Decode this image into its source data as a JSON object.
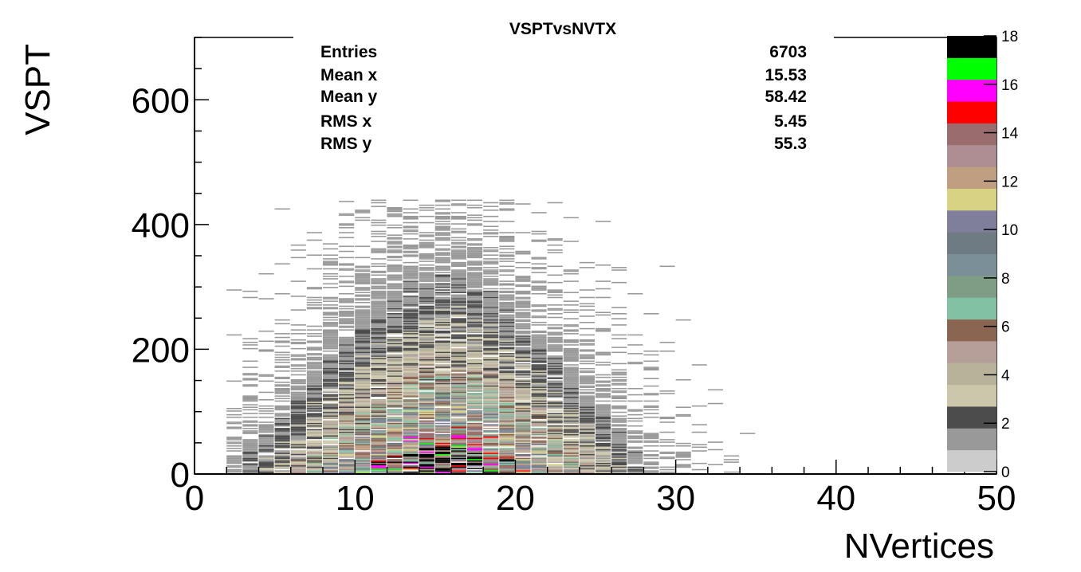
{
  "chart_data": {
    "type": "heatmap",
    "title": "VSPTvsNVTX",
    "xlabel": "NVertices",
    "ylabel": "VSPT",
    "xlim": [
      0,
      50
    ],
    "ylim": [
      0,
      700
    ],
    "zlim": [
      0,
      18
    ],
    "x_ticks": [
      "0",
      "10",
      "20",
      "30",
      "40",
      "50"
    ],
    "y_ticks": [
      "0",
      "200",
      "400",
      "600"
    ],
    "z_ticks": [
      "0",
      "2",
      "4",
      "6",
      "8",
      "10",
      "12",
      "14",
      "16",
      "18"
    ],
    "x_tick_values": [
      0,
      10,
      20,
      30,
      40,
      50
    ],
    "y_tick_values": [
      0,
      200,
      400,
      600
    ],
    "z_tick_values": [
      0,
      2,
      4,
      6,
      8,
      10,
      12,
      14,
      16,
      18
    ],
    "palette": [
      "#cccccc",
      "#999999",
      "#4c4c4c",
      "#ccc6aa",
      "#b7b29a",
      "#b59f98",
      "#8a6652",
      "#83c1a4",
      "#7f9c85",
      "#7a8f98",
      "#6f7b82",
      "#7f7f9c",
      "#d8d283",
      "#c09e82",
      "#ae8e92",
      "#9b6c6e",
      "#ff0000",
      "#ff00ff",
      "#00ff00",
      "#000000"
    ],
    "stats": {
      "entries_label": "Entries",
      "entries": "6703",
      "mean_x_label": "Mean x",
      "mean_x": "15.53",
      "mean_y_label": "Mean y",
      "mean_y": "58.42",
      "rms_x_label": "RMS x",
      "rms_x": "5.45",
      "rms_y_label": "RMS y",
      "rms_y": "55.3"
    },
    "distribution": {
      "entries": 6703,
      "mean_x": 15.53,
      "mean_y": 58.42,
      "rms_x": 5.45,
      "rms_y": 55.3,
      "x_range": [
        2,
        40
      ],
      "y_max": 440
    }
  }
}
